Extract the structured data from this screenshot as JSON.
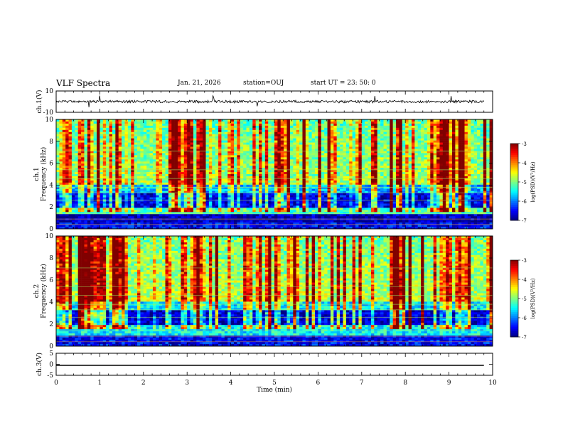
{
  "header": {
    "title": "VLF Spectra",
    "date": "Jan. 21, 2026",
    "station": "station=OUJ",
    "start": "start  UT =   23: 50: 0"
  },
  "chart_data": [
    {
      "type": "line",
      "panel": "ch1-waveform",
      "ylabel": "ch.1(V)",
      "ylim": [
        -10,
        10
      ],
      "ytick_labels": [
        "10",
        "-10"
      ],
      "x_unit": "min",
      "series_note_values": {
        "baseline": 0,
        "amplitude_typical": 1.2,
        "spikes_min": [
          0.75,
          1.0,
          3.6,
          4.6,
          7.3,
          9.05
        ]
      }
    },
    {
      "type": "heatmap",
      "panel": "ch1-spectrogram",
      "ylabel": "ch.1",
      "ylabel2": "Frequency (kHz)",
      "ylim": [
        0,
        10
      ],
      "ytick_labels": [
        "0",
        "2",
        "4",
        "6",
        "8",
        "10"
      ],
      "xlim": [
        0,
        10
      ],
      "colorbar": {
        "label": "log(PSD)(V²/Hz)",
        "range": [
          -7,
          -3
        ],
        "tick_labels": [
          "-3",
          "-4",
          "-5",
          "-6",
          "-7"
        ]
      },
      "bands_khz": [
        {
          "from": 0,
          "to": 0.5,
          "level": -6.5
        },
        {
          "from": 0.5,
          "to": 1.3,
          "level": -6.8
        },
        {
          "from": 1.3,
          "to": 2.0,
          "level": -5.2
        },
        {
          "from": 2.0,
          "to": 3.2,
          "level": -6.6
        },
        {
          "from": 3.2,
          "to": 4.0,
          "level": -5.8
        },
        {
          "from": 4.0,
          "to": 10,
          "level": -5.0
        }
      ]
    },
    {
      "type": "heatmap",
      "panel": "ch2-spectrogram",
      "ylabel": "ch.2",
      "ylabel2": "Frequency (kHz)",
      "ylim": [
        0,
        10
      ],
      "ytick_labels": [
        "0",
        "2",
        "4",
        "6",
        "8",
        "10"
      ],
      "xlim": [
        0,
        10
      ],
      "colorbar": {
        "label": "log(PSD)(V²/Hz)",
        "range": [
          -7,
          -3
        ],
        "tick_labels": [
          "-3",
          "-4",
          "-5",
          "-6",
          "-7"
        ]
      },
      "bands_khz": [
        {
          "from": 0,
          "to": 1.0,
          "level": -6.5
        },
        {
          "from": 1.0,
          "to": 2.0,
          "level": -5.5
        },
        {
          "from": 2.0,
          "to": 3.3,
          "level": -6.7
        },
        {
          "from": 3.3,
          "to": 4.0,
          "level": -5.6
        },
        {
          "from": 4.0,
          "to": 10,
          "level": -4.9
        }
      ]
    },
    {
      "type": "line",
      "panel": "ch3-waveform",
      "ylabel": "ch.3(V)",
      "ylim": [
        -5,
        5
      ],
      "ytick_labels": [
        "5",
        "0",
        "-5"
      ],
      "series_value": -0.5,
      "xlabel": "Time (min)",
      "xlim": [
        0,
        10
      ],
      "xtick_labels": [
        "0",
        "1",
        "2",
        "3",
        "4",
        "5",
        "6",
        "7",
        "8",
        "9",
        "10"
      ]
    }
  ]
}
